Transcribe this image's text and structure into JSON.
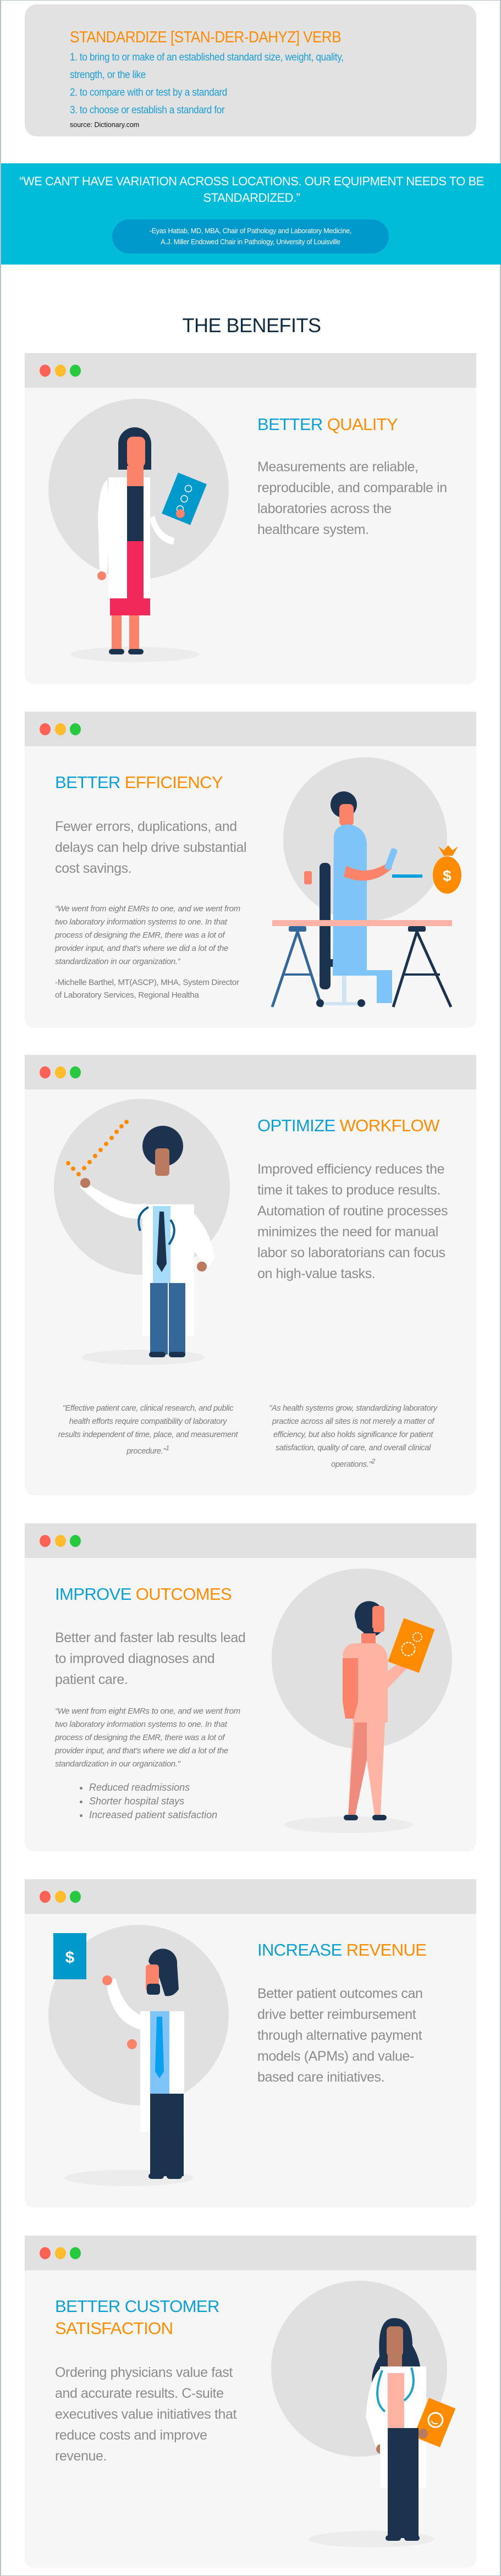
{
  "definition": {
    "title": "STANDARDIZE [STAN-DER-DAHYZ] VERB",
    "lines": [
      "1. to bring to or make of an established standard size, weight, quality,",
      "strength, or the like",
      "2. to compare with or test by a standard",
      "3. to choose or establish a standard for"
    ],
    "source": "source: Dictionary.com"
  },
  "banner": {
    "quote": "“WE CAN'T HAVE VARIATION ACROSS LOCATIONS. OUR EQUIPMENT NEEDS TO BE STANDARDIZED.”",
    "attribution_line1": "-Eyas Hattab, MD, MBA, Chair of Pathology and Laboratory Medicine,",
    "attribution_line2": "A.J. Miller Endowed Chair in Pathology, University of Louisville"
  },
  "benefits_heading": "THE BENEFITS",
  "colors": {
    "blue": "#0aa0d4",
    "orange": "#ff8c00",
    "cyan_band": "#00bcd9",
    "pill": "#0099cc"
  },
  "cards": [
    {
      "title_blue": "BETTER",
      "title_orange": "QUALITY",
      "body": "Measurements are reliable, reproducible, and comparable in laboratories across the healthcare system.",
      "illustration": "woman-doctor-with-checklist"
    },
    {
      "title_blue": "BETTER",
      "title_orange": "EFFICIENCY",
      "body": "Fewer errors, duplications, and delays can help drive substantial cost savings.",
      "quote": "“We went from eight EMRs to one, and we went from two laboratory information systems to one. In that process of designing the EMR, there was a lot of provider input, and that's where we did a lot of the standardization in our organization.”",
      "attribution": "-Michelle Barthel, MT(ASCP), MHA, System Director of Laboratory Services, Regional Healtha",
      "illustration": "lab-worker-at-microscope-with-money-bag"
    },
    {
      "title_blue": "OPTIMIZE",
      "title_orange": "WORKFLOW",
      "body": "Improved efficiency reduces the time it takes to produce results. Automation of routine processes minimizes the need for manual labor so laboratorians can focus on high-value tasks.",
      "quote_left": "\"Effective patient care, clinical research, and public health efforts require compatibility of laboratory results independent of time, place, and measurement procedure.\"",
      "quote_left_ref": "1",
      "quote_right": "\"As health systems grow, standardizing laboratory practice across all sites is not merely a matter of efficiency, but also holds significance for patient satisfaction, quality of care, and overall clinical operations.\"",
      "quote_right_ref": "2",
      "illustration": "doctor-drawing-checkmark"
    },
    {
      "title_blue": "IMPROVE",
      "title_orange": "OUTCOMES",
      "body": "Better and faster lab results lead to improved diagnoses and patient care.",
      "quote": "“We went from eight EMRs to one, and we went from two laboratory information systems to one. In that process of designing the EMR, there was a lot of provider input, and that's where we did a lot of the standardization in our organization.\"",
      "bullets": [
        "Reduced readmissions",
        "Shorter hospital stays",
        "Increased patient satisfaction"
      ],
      "illustration": "nurse-with-gears-tablet"
    },
    {
      "title_blue": "INCREASE",
      "title_orange": "REVENUE",
      "body": "Better patient outcomes can drive better reimbursement through alternative payment models (APMs) and value-based care initiatives.",
      "illustration": "doctor-holding-dollar-card"
    },
    {
      "title_blue": "BETTER CUSTOMER",
      "title_orange": "SATISFACTION",
      "body": "Ordering physicians value fast and accurate results. C-suite executives value initiatives that reduce costs and improve revenue.",
      "illustration": "woman-doctor-with-smiley-card"
    }
  ]
}
